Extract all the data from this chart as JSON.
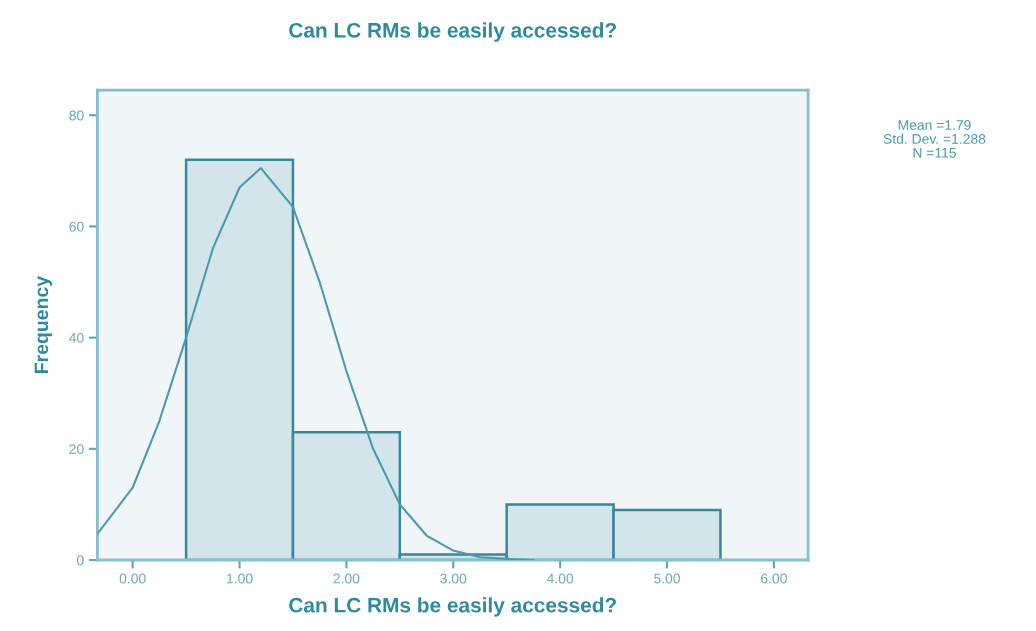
{
  "chart_data": {
    "type": "histogram",
    "title": "Can LC RMs be easily accessed?",
    "xlabel": "Can LC RMs be easily accessed?",
    "ylabel": "Frequency",
    "series": [
      {
        "bins": [
          0.5,
          1.5,
          2.5,
          3.5,
          4.5,
          5.5
        ],
        "values": [
          72,
          23,
          1,
          10,
          9
        ],
        "color": "#d3e5eb"
      },
      {
        "type": "line",
        "x": [
          -0.33,
          0.0,
          0.25,
          0.5,
          0.75,
          1.0,
          1.2,
          1.5,
          1.75,
          2.0,
          2.25,
          2.5,
          2.75,
          3.0,
          3.25,
          3.5,
          3.75
        ],
        "values": [
          4.7,
          13,
          25,
          40,
          56,
          67,
          70.5,
          63.5,
          50,
          34,
          20,
          10,
          4.4,
          1.7,
          0.5,
          0.2,
          0
        ],
        "color": "#4a9aab"
      }
    ],
    "xlim": [
      -0.33,
      6.32
    ],
    "ylim": [
      0,
      84.5
    ],
    "xticks": [
      {
        "value": 0,
        "label": "0.00"
      },
      {
        "value": 1,
        "label": "1.00"
      },
      {
        "value": 2,
        "label": "2.00"
      },
      {
        "value": 3,
        "label": "3.00"
      },
      {
        "value": 4,
        "label": "4.00"
      },
      {
        "value": 5,
        "label": "5.00"
      },
      {
        "value": 6,
        "label": "6.00"
      }
    ],
    "yticks": [
      0,
      20,
      40,
      60,
      80
    ],
    "grid": false,
    "annotations": [
      "Mean =1.79",
      "Std. Dev. =1.288",
      "N =115"
    ]
  }
}
